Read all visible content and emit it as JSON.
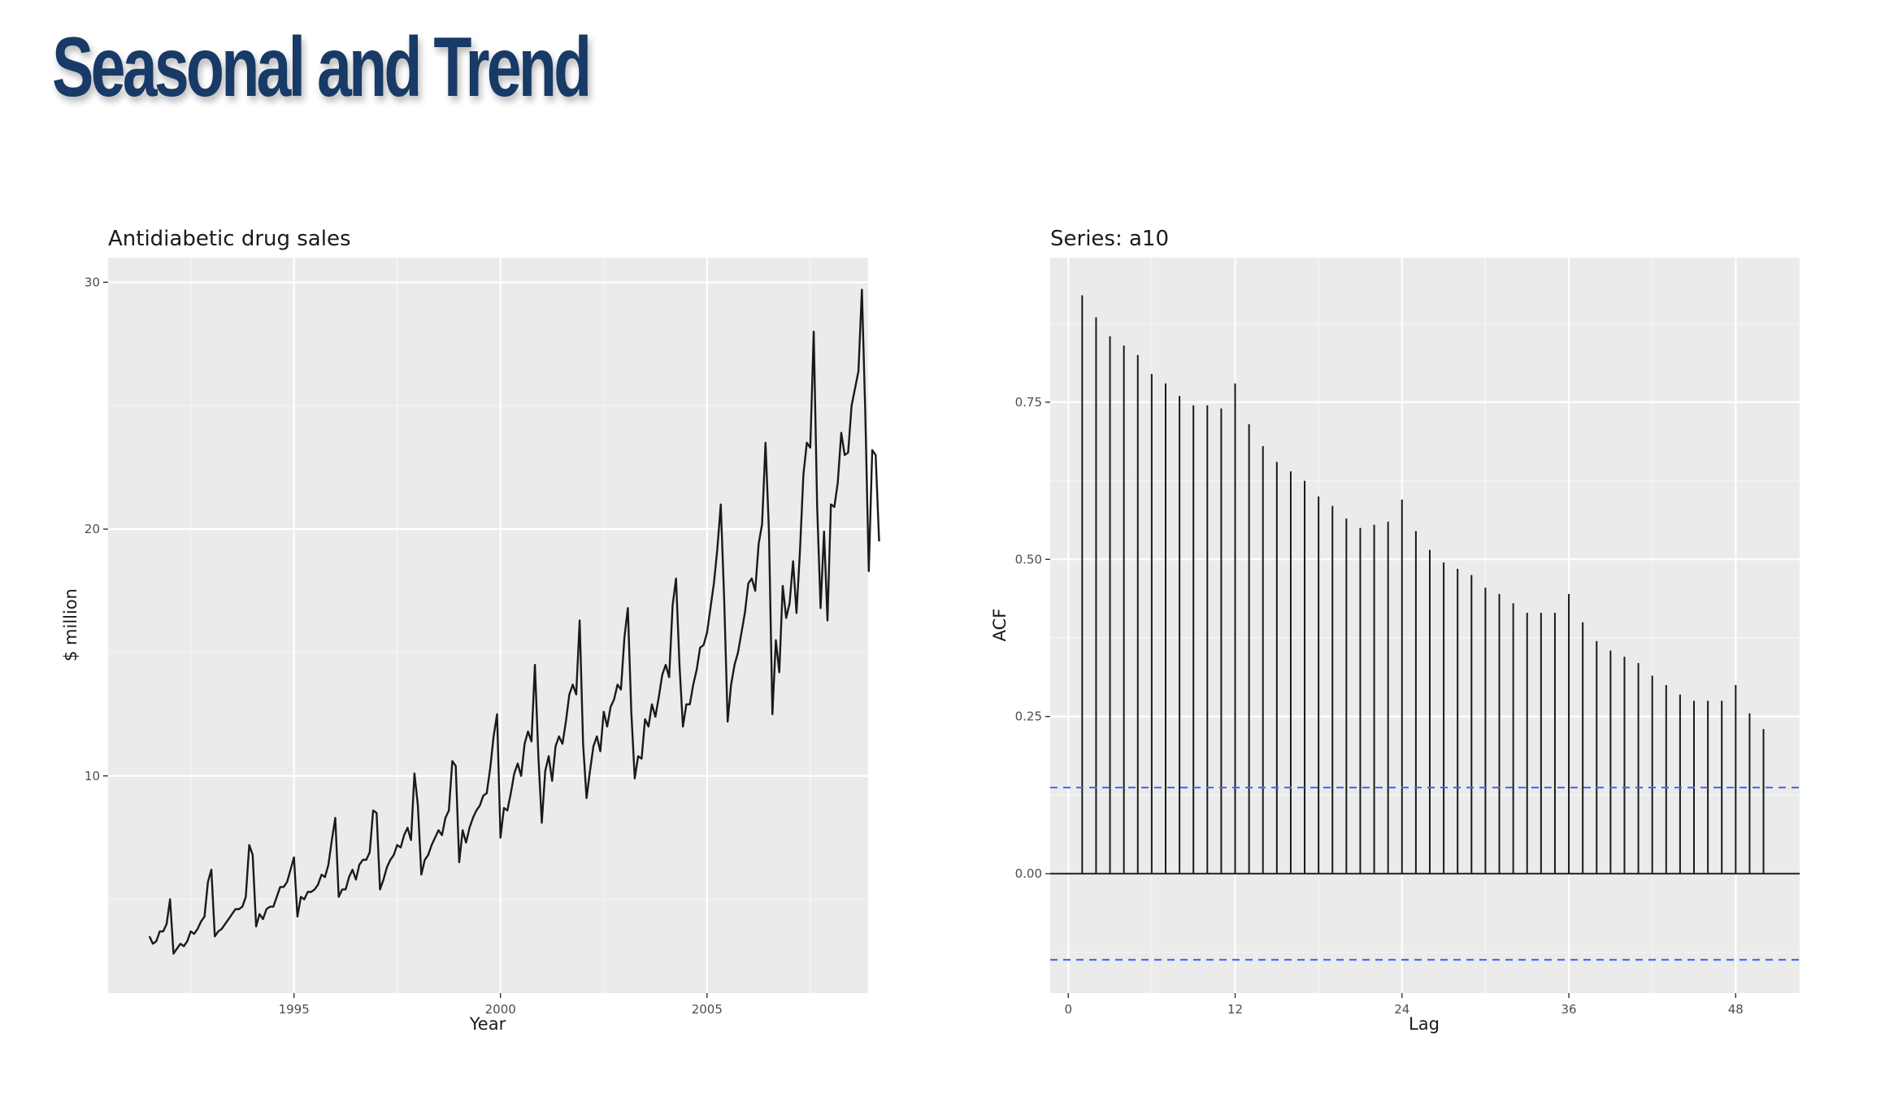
{
  "slide": {
    "title": "Seasonal and Trend",
    "title_color": "#173a66"
  },
  "chart_data": [
    {
      "type": "line",
      "title": "Antidiabetic drug sales",
      "xlabel": "Year",
      "ylabel": "$ million",
      "x_ticks": [
        1995,
        2000,
        2005
      ],
      "y_ticks": [
        10,
        20,
        30
      ],
      "xlim": [
        1990.5,
        2008.9
      ],
      "ylim": [
        1.2,
        31
      ],
      "grid": true,
      "panel_color": "#ebebeb",
      "line_color": "#1a1a1a",
      "series": [
        {
          "x_start": 1991.5,
          "x_step": 0.08333,
          "values": [
            3.5,
            3.2,
            3.3,
            3.7,
            3.7,
            4.0,
            5.0,
            2.8,
            3.0,
            3.2,
            3.1,
            3.3,
            3.7,
            3.6,
            3.8,
            4.1,
            4.3,
            5.7,
            6.2,
            3.5,
            3.7,
            3.8,
            4.0,
            4.2,
            4.4,
            4.6,
            4.6,
            4.7,
            5.1,
            7.2,
            6.8,
            3.9,
            4.4,
            4.2,
            4.6,
            4.7,
            4.7,
            5.1,
            5.5,
            5.5,
            5.7,
            6.2,
            6.7,
            4.3,
            5.1,
            5.0,
            5.3,
            5.3,
            5.4,
            5.6,
            6.0,
            5.9,
            6.4,
            7.4,
            8.3,
            5.1,
            5.4,
            5.4,
            5.9,
            6.2,
            5.8,
            6.4,
            6.6,
            6.6,
            6.9,
            8.6,
            8.5,
            5.4,
            5.8,
            6.3,
            6.6,
            6.8,
            7.2,
            7.1,
            7.6,
            7.9,
            7.4,
            10.1,
            8.8,
            6.0,
            6.6,
            6.8,
            7.2,
            7.5,
            7.8,
            7.6,
            8.3,
            8.6,
            10.6,
            10.4,
            6.5,
            7.8,
            7.3,
            7.9,
            8.3,
            8.6,
            8.8,
            9.2,
            9.3,
            10.3,
            11.6,
            12.5,
            7.5,
            8.7,
            8.6,
            9.3,
            10.1,
            10.5,
            10.0,
            11.3,
            11.8,
            11.4,
            14.5,
            10.8,
            8.1,
            10.2,
            10.8,
            9.8,
            11.2,
            11.6,
            11.3,
            12.2,
            13.3,
            13.7,
            13.3,
            16.3,
            11.3,
            9.1,
            10.2,
            11.2,
            11.6,
            11.0,
            12.6,
            12.0,
            12.8,
            13.1,
            13.7,
            13.5,
            15.6,
            16.8,
            12.6,
            9.9,
            10.8,
            10.7,
            12.3,
            12.0,
            12.9,
            12.4,
            13.2,
            14.1,
            14.5,
            14.0,
            16.9,
            18.0,
            14.5,
            12.0,
            12.9,
            12.9,
            13.7,
            14.3,
            15.2,
            15.3,
            15.8,
            16.8,
            17.8,
            19.2,
            21.0,
            17.1,
            12.2,
            13.7,
            14.5,
            15.0,
            15.8,
            16.6,
            17.8,
            18.0,
            17.5,
            19.4,
            20.2,
            23.5,
            19.9,
            12.5,
            15.5,
            14.2,
            17.7,
            16.4,
            17.0,
            18.7,
            16.6,
            19.1,
            22.2,
            23.5,
            23.3,
            28.0,
            20.9,
            16.8,
            19.9,
            16.3,
            21.0,
            20.9,
            21.9,
            23.9,
            23.0,
            23.1,
            25.0,
            25.7,
            26.4,
            29.7,
            24.6,
            18.3,
            23.2,
            23.0,
            19.5
          ]
        }
      ]
    },
    {
      "type": "bar",
      "title": "Series: a10",
      "xlabel": "Lag",
      "ylabel": "ACF",
      "x_ticks": [
        0,
        12,
        24,
        36,
        48
      ],
      "y_ticks": [
        0.0,
        0.25,
        0.5,
        0.75
      ],
      "y_tick_labels": [
        "0.00",
        "0.25",
        "0.50",
        "0.75"
      ],
      "xlim": [
        -1.3,
        52.6
      ],
      "ylim": [
        -0.19,
        0.98
      ],
      "confidence_bound": 0.137,
      "grid": true,
      "panel_color": "#ebebeb",
      "bar_color": "#1a1a1a",
      "bound_color": "#4a6bff",
      "lags": [
        1,
        2,
        3,
        4,
        5,
        6,
        7,
        8,
        9,
        10,
        11,
        12,
        13,
        14,
        15,
        16,
        17,
        18,
        19,
        20,
        21,
        22,
        23,
        24,
        25,
        26,
        27,
        28,
        29,
        30,
        31,
        32,
        33,
        34,
        35,
        36,
        37,
        38,
        39,
        40,
        41,
        42,
        43,
        44,
        45,
        46,
        47,
        48,
        49,
        50
      ],
      "values": [
        0.92,
        0.885,
        0.855,
        0.84,
        0.825,
        0.795,
        0.78,
        0.76,
        0.745,
        0.745,
        0.74,
        0.78,
        0.715,
        0.68,
        0.655,
        0.64,
        0.625,
        0.6,
        0.585,
        0.565,
        0.55,
        0.555,
        0.56,
        0.595,
        0.545,
        0.515,
        0.495,
        0.485,
        0.475,
        0.455,
        0.445,
        0.43,
        0.415,
        0.415,
        0.415,
        0.445,
        0.4,
        0.37,
        0.355,
        0.345,
        0.335,
        0.315,
        0.3,
        0.285,
        0.275,
        0.275,
        0.275,
        0.3,
        0.255,
        0.23
      ]
    }
  ]
}
